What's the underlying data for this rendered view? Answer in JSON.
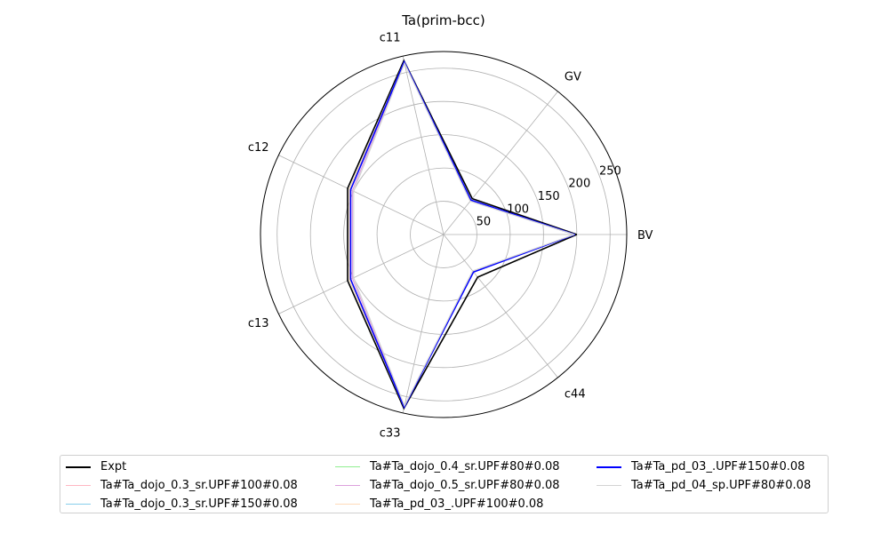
{
  "chart_data": {
    "type": "radar",
    "title": "Ta(prim-bcc)",
    "axes": [
      "BV",
      "GV",
      "c11",
      "c12",
      "c13",
      "c33",
      "c44"
    ],
    "rticks": [
      50,
      100,
      150,
      200,
      250
    ],
    "rlim": [
      0,
      275
    ],
    "grid": true,
    "legend_position": "bottom",
    "series": [
      {
        "name": "Expt",
        "color": "#000000",
        "values": [
          200,
          69,
          268,
          160,
          160,
          268,
          82
        ]
      },
      {
        "name": "Ta#Ta_dojo_0.3_sr.UPF#100#0.08",
        "color": "#ffb6c1",
        "values": [
          197,
          66,
          266,
          157,
          157,
          266,
          71
        ]
      },
      {
        "name": "Ta#Ta_dojo_0.3_sr.UPF#150#0.08",
        "color": "#87ceeb",
        "values": [
          197,
          66,
          266,
          157,
          157,
          266,
          71
        ]
      },
      {
        "name": "Ta#Ta_dojo_0.4_sr.UPF#80#0.08",
        "color": "#90ee90",
        "values": [
          197,
          66,
          266,
          157,
          157,
          266,
          71
        ]
      },
      {
        "name": "Ta#Ta_dojo_0.5_sr.UPF#80#0.08",
        "color": "#dda0dd",
        "values": [
          197,
          65,
          265,
          152,
          152,
          265,
          71
        ]
      },
      {
        "name": "Ta#Ta_pd_03_.UPF#100#0.08",
        "color": "#ffdab9",
        "values": [
          197,
          66,
          266,
          157,
          157,
          266,
          71
        ]
      },
      {
        "name": "Ta#Ta_pd_03_.UPF#150#0.08",
        "color": "#0000ff",
        "values": [
          197,
          66,
          266,
          155,
          155,
          266,
          72
        ]
      },
      {
        "name": "Ta#Ta_pd_04_sp.UPF#80#0.08",
        "color": "#d3d3d3",
        "values": [
          196,
          64,
          264,
          150,
          150,
          264,
          70
        ]
      }
    ]
  }
}
